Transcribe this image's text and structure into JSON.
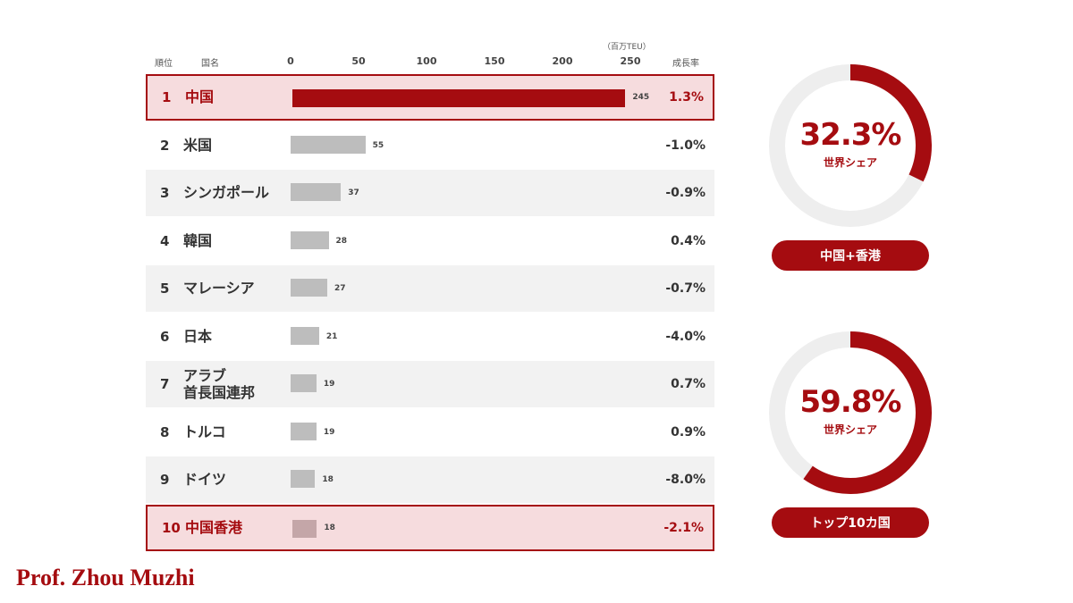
{
  "header": {
    "rank_label": "順位",
    "name_label": "国名",
    "unit_label": "（百万TEU）",
    "growth_label": "成長率"
  },
  "chart_data": {
    "type": "bar",
    "xlim": [
      0,
      250
    ],
    "ticks": [
      "0",
      "50",
      "100",
      "150",
      "200",
      "250"
    ],
    "colors": {
      "highlight": "#a50c10",
      "normal": "#bdbdbd",
      "hongkong": "#c4a6a8"
    },
    "rows": [
      {
        "rank": "1",
        "name": "中国",
        "value": 245,
        "growth": "1.3%",
        "highlight": true
      },
      {
        "rank": "2",
        "name": "米国",
        "value": 55,
        "growth": "-1.0%"
      },
      {
        "rank": "3",
        "name": "シンガポール",
        "value": 37,
        "growth": "-0.9%"
      },
      {
        "rank": "4",
        "name": "韓国",
        "value": 28,
        "growth": "0.4%"
      },
      {
        "rank": "5",
        "name": "マレーシア",
        "value": 27,
        "growth": "-0.7%"
      },
      {
        "rank": "6",
        "name": "日本",
        "value": 21,
        "growth": "-4.0%"
      },
      {
        "rank": "7",
        "name": "アラブ\n首長国連邦",
        "value": 19,
        "growth": "0.7%"
      },
      {
        "rank": "8",
        "name": "トルコ",
        "value": 19,
        "growth": "0.9%"
      },
      {
        "rank": "9",
        "name": "ドイツ",
        "value": 18,
        "growth": "-8.0%"
      },
      {
        "rank": "10",
        "name": "中国香港",
        "value": 18,
        "growth": "-2.1%",
        "outline": true
      }
    ],
    "donuts": [
      {
        "percent": 32.3,
        "value_label": "32.3%",
        "sublabel": "世界シェア",
        "pill": "中国+香港"
      },
      {
        "percent": 59.8,
        "value_label": "59.8%",
        "sublabel": "世界シェア",
        "pill": "トップ10カ国"
      }
    ]
  },
  "footer": {
    "author": "Prof. Zhou Muzhi"
  }
}
